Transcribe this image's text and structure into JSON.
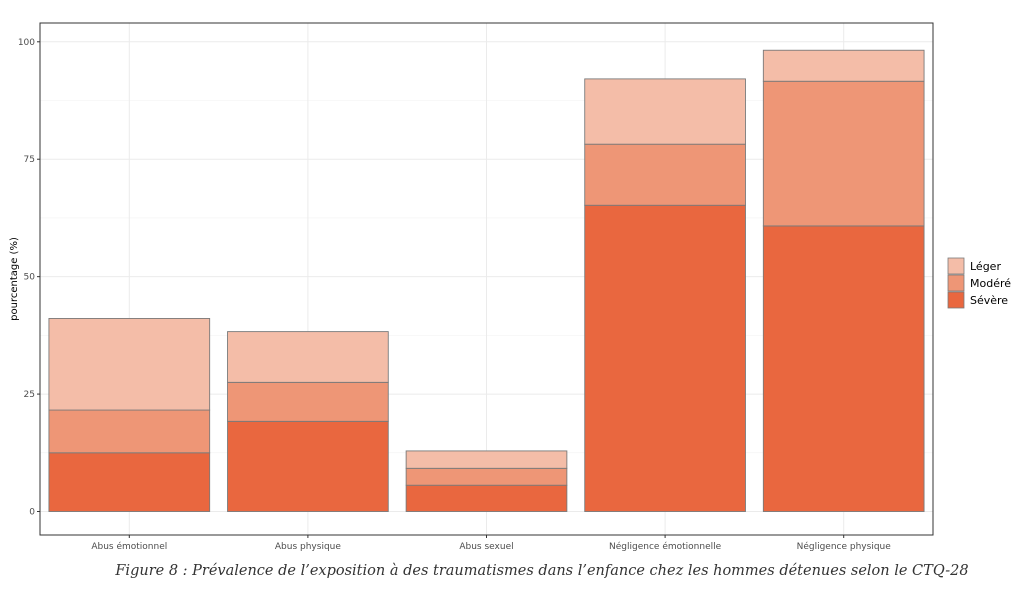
{
  "chart_data": {
    "type": "bar",
    "stacked": true,
    "categories": [
      "Abus émotionnel",
      "Abus physique",
      "Abus sexuel",
      "Négligence émotionnelle",
      "Négligence physique"
    ],
    "series": [
      {
        "name": "Sévère",
        "values": [
          12.5,
          19.2,
          5.6,
          65.2,
          60.8
        ]
      },
      {
        "name": "Modéré",
        "values": [
          9.1,
          8.3,
          3.6,
          13.0,
          30.8
        ]
      },
      {
        "name": "Léger",
        "values": [
          19.5,
          10.8,
          3.7,
          13.9,
          6.6
        ]
      }
    ],
    "colors": {
      "Léger": "#f4bda8",
      "Modéré": "#ee9676",
      "Sévère": "#e9673f"
    },
    "ylabel": "pourcentage (%)",
    "xlabel": "",
    "ylim": [
      -5,
      104
    ],
    "yticks": [
      0,
      25,
      50,
      75,
      100
    ],
    "legend_order": [
      "Léger",
      "Modéré",
      "Sévère"
    ],
    "legend_position": "right",
    "grid": true
  },
  "caption": "Figure 8 : Prévalence de l’exposition à des traumatismes dans l’enfance chez les hommes détenues selon le CTQ-28"
}
